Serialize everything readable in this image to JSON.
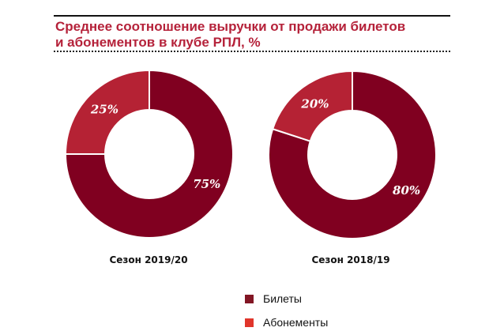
{
  "header": {
    "title_line1": "Среднее соотношение выручки от продажи билетов",
    "title_line2": "и абонементов в клубе РПЛ, %"
  },
  "colors": {
    "tickets": "#800020",
    "subscriptions": "#b52234",
    "legend_tickets": "#821624",
    "legend_subscriptions": "#e0352b",
    "title": "#b5223a"
  },
  "charts": [
    {
      "season": "Сезон 2019/20",
      "slices": [
        {
          "label": "Билеты",
          "value": 75,
          "text": "75%"
        },
        {
          "label": "Абонементы",
          "value": 25,
          "text": "25%"
        }
      ]
    },
    {
      "season": "Сезон 2018/19",
      "slices": [
        {
          "label": "Билеты",
          "value": 80,
          "text": "80%"
        },
        {
          "label": "Абонементы",
          "value": 20,
          "text": "20%"
        }
      ]
    }
  ],
  "legend": {
    "items": [
      {
        "label": "Билеты"
      },
      {
        "label": "Абонементы"
      }
    ]
  },
  "chart_data": [
    {
      "type": "pie",
      "subtype": "donut",
      "title": "Среднее соотношение выручки от продажи билетов и абонементов в клубе РПЛ, %",
      "subtitle": "Сезон 2019/20",
      "categories": [
        "Билеты",
        "Абонементы"
      ],
      "values": [
        75,
        25
      ],
      "legend_position": "bottom-center"
    },
    {
      "type": "pie",
      "subtype": "donut",
      "title": "Среднее соотношение выручки от продажи билетов и абонементов в клубе РПЛ, %",
      "subtitle": "Сезон 2018/19",
      "categories": [
        "Билеты",
        "Абонементы"
      ],
      "values": [
        80,
        20
      ],
      "legend_position": "bottom-center"
    }
  ]
}
